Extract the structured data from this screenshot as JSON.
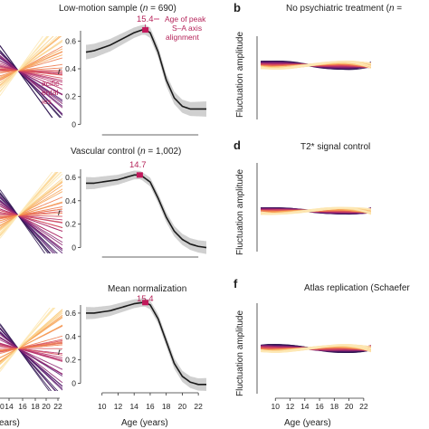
{
  "panels": {
    "a": {
      "title": "Low-motion sample (",
      "title_n": "n",
      "title_tail": " = 690)",
      "peak_label": "15.4",
      "note_lines": [
        "Age of peak",
        "S–A axis",
        "alignment"
      ],
      "left_fragment_lines": [
        "acific",
        "ental",
        "ies"
      ],
      "r_label": "r"
    },
    "b": {
      "letter": "b",
      "title": "No psychiatric treatment (",
      "title_n": "n",
      "title_tail": " =",
      "ylabel": "Fluctuation amplitude"
    },
    "c": {
      "title": "Vascular control (",
      "title_n": "n",
      "title_tail": " = 1,002)",
      "peak_label": "14.7",
      "r_label": "r"
    },
    "d": {
      "letter": "d",
      "title": "T2* signal control",
      "ylabel": "Fluctuation amplitude"
    },
    "e": {
      "title": "Mean normalization",
      "peak_label": "15.4",
      "r_label": "r"
    },
    "f": {
      "letter": "f",
      "title": "Atlas replication (Schaefer",
      "ylabel": "Fluctuation amplitude"
    }
  },
  "axes": {
    "xlabel_left": "ears)",
    "xlabel_mid": "Age (years)",
    "xlabel_right": "Age (years)",
    "x_ticks": [
      "10",
      "12",
      "14",
      "16",
      "18",
      "20",
      "22"
    ],
    "left_x_ticks": [
      "0",
      "14",
      "16",
      "18",
      "20",
      "22"
    ],
    "y_ticks_r": [
      "0.6",
      "0.4",
      "0.2",
      "0"
    ]
  },
  "colors": {
    "peak": "#c2185b",
    "curve": "#1a1a1a",
    "band": "#c8c8c8",
    "palette": [
      "#2d1450",
      "#5a1a6e",
      "#8b2370",
      "#b8326a",
      "#d9505a",
      "#ee7a4c",
      "#f7a65a",
      "#fbd08a",
      "#fde8b5"
    ]
  },
  "chart_data": [
    {
      "type": "line",
      "title": "Low-motion sample (n = 690)",
      "ylabel": "r",
      "xlabel": "Age (years)",
      "xlim": [
        8,
        23
      ],
      "ylim": [
        -0.05,
        0.7
      ],
      "peak_age": 15.4,
      "peak_r": 0.68,
      "series": [
        {
          "x": [
            8,
            9,
            10,
            11,
            12,
            13,
            14,
            15,
            15.4,
            16,
            17,
            18,
            19,
            20,
            21,
            22,
            23
          ],
          "y": [
            0.52,
            0.53,
            0.55,
            0.57,
            0.6,
            0.63,
            0.66,
            0.68,
            0.68,
            0.66,
            0.52,
            0.32,
            0.19,
            0.13,
            0.11,
            0.11,
            0.11
          ]
        }
      ]
    },
    {
      "type": "line",
      "title": "Vascular control (n = 1,002)",
      "ylabel": "r",
      "xlabel": "Age (years)",
      "xlim": [
        8,
        23
      ],
      "ylim": [
        -0.05,
        0.7
      ],
      "peak_age": 14.7,
      "peak_r": 0.62,
      "series": [
        {
          "x": [
            8,
            9,
            10,
            11,
            12,
            13,
            14,
            14.7,
            15,
            16,
            17,
            18,
            19,
            20,
            21,
            22,
            23
          ],
          "y": [
            0.55,
            0.55,
            0.56,
            0.57,
            0.58,
            0.6,
            0.62,
            0.62,
            0.61,
            0.56,
            0.42,
            0.26,
            0.14,
            0.07,
            0.03,
            0.01,
            0.0
          ]
        }
      ]
    },
    {
      "type": "line",
      "title": "Mean normalization",
      "ylabel": "r",
      "xlabel": "Age (years)",
      "xlim": [
        8,
        23
      ],
      "ylim": [
        -0.05,
        0.7
      ],
      "peak_age": 15.4,
      "peak_r": 0.69,
      "series": [
        {
          "x": [
            8,
            9,
            10,
            11,
            12,
            13,
            14,
            15,
            15.4,
            16,
            17,
            18,
            19,
            20,
            21,
            22,
            23
          ],
          "y": [
            0.6,
            0.6,
            0.61,
            0.62,
            0.64,
            0.66,
            0.68,
            0.69,
            0.69,
            0.67,
            0.55,
            0.36,
            0.17,
            0.06,
            0.01,
            -0.01,
            -0.01
          ]
        }
      ]
    }
  ]
}
